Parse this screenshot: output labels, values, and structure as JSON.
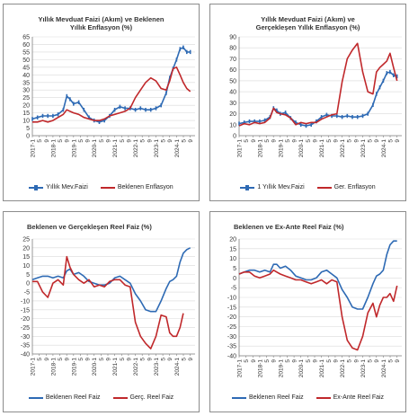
{
  "colors": {
    "blue": "#2e6ab4",
    "red": "#c0282b",
    "grid": "#d9d9d9",
    "axis": "#7f7f7f"
  },
  "x_categories": [
    "2017-1",
    "5",
    "9",
    "2018-1",
    "5",
    "9",
    "2019-1",
    "5",
    "9",
    "2020-1",
    "5",
    "9",
    "2021-1",
    "5",
    "9",
    "2022-1",
    "5",
    "9",
    "2023-1",
    "5",
    "9",
    "2024-1",
    "5",
    "9"
  ],
  "panels": {
    "p1": {
      "title_line1": "Yıllık Mevduat Faizi (Akım) ve Beklenen",
      "title_line2": "Yıllık Enflasyon (%)",
      "legend": [
        "Yıllık Mev.Faizi",
        "Beklenen Enflasyon"
      ]
    },
    "p2": {
      "title_line1": "Yıllık Mevduat Faizi (Akım) ve",
      "title_line2": "Gerçekleşen Yıllık Enflasyon (%)",
      "legend": [
        "1 Yıllık Mev.Faizi",
        "Ger. Enflasyon"
      ]
    },
    "p3": {
      "title_line1": "Beklenen ve Gerçekleşen Reel Faiz (%)",
      "legend": [
        "Beklenen Reel Faiz",
        "Gerç. Reel Faiz"
      ]
    },
    "p4": {
      "title_line1": "Beklenen ve Ex-Ante Reel Faiz (%)",
      "legend": [
        "Beklenen Reel Faiz",
        "Ex-Ante Reel Faiz"
      ]
    }
  },
  "chart_data": [
    {
      "type": "line",
      "title": "Yıllık Mevduat Faizi (Akım) ve Beklenen Yıllık Enflasyon (%)",
      "ylim": [
        0,
        65
      ],
      "ytick_step": 5,
      "grid": true,
      "legend_position": "bottom",
      "x": [
        2017.0,
        2017.25,
        2017.5,
        2017.75,
        2018.0,
        2018.25,
        2018.5,
        2018.67,
        2018.83,
        2019.0,
        2019.25,
        2019.5,
        2019.75,
        2020.0,
        2020.25,
        2020.5,
        2020.75,
        2021.0,
        2021.25,
        2021.5,
        2021.75,
        2022.0,
        2022.25,
        2022.5,
        2022.75,
        2023.0,
        2023.25,
        2023.5,
        2023.67,
        2023.83,
        2024.0,
        2024.17,
        2024.33,
        2024.5,
        2024.67
      ],
      "series": [
        {
          "name": "Yıllık Mev.Faizi",
          "values": [
            11,
            12,
            13,
            13,
            13,
            14,
            17,
            26,
            24,
            21,
            22,
            17,
            12,
            10,
            9,
            10,
            13,
            17,
            19,
            18,
            18,
            17,
            18,
            17,
            17,
            18,
            20,
            28,
            38,
            44,
            50,
            57,
            58,
            55,
            55
          ]
        },
        {
          "name": "Beklenen Enflasyon",
          "values": [
            9,
            9,
            10,
            9,
            10,
            12,
            14,
            17,
            16,
            15,
            14,
            12,
            11,
            10,
            10,
            11,
            13,
            14,
            15,
            16,
            18,
            25,
            30,
            35,
            38,
            36,
            31,
            30,
            36,
            44,
            45,
            40,
            35,
            31,
            29
          ]
        }
      ]
    },
    {
      "type": "line",
      "title": "Yıllık Mevduat Faizi (Akım) ve Gerçekleşen Yıllık Enflasyon (%)",
      "ylim": [
        0,
        90
      ],
      "ytick_step": 10,
      "grid": true,
      "legend_position": "bottom",
      "x": [
        2017.0,
        2017.25,
        2017.5,
        2017.75,
        2018.0,
        2018.25,
        2018.5,
        2018.67,
        2018.83,
        2019.0,
        2019.25,
        2019.5,
        2019.75,
        2020.0,
        2020.25,
        2020.5,
        2020.75,
        2021.0,
        2021.25,
        2021.5,
        2021.75,
        2022.0,
        2022.25,
        2022.5,
        2022.75,
        2023.0,
        2023.25,
        2023.5,
        2023.67,
        2023.83,
        2024.0,
        2024.17,
        2024.33,
        2024.5,
        2024.67
      ],
      "series": [
        {
          "name": "1 Yıllık Mev.Faizi",
          "values": [
            11,
            12,
            13,
            13,
            13,
            14,
            17,
            25,
            23,
            20,
            21,
            16,
            12,
            10,
            9,
            10,
            13,
            17,
            19,
            18,
            18,
            17,
            18,
            17,
            17,
            18,
            20,
            28,
            38,
            44,
            50,
            57,
            58,
            55,
            54
          ]
        },
        {
          "name": "Ger. Enflasyon",
          "values": [
            9,
            11,
            10,
            12,
            11,
            12,
            16,
            25,
            21,
            20,
            19,
            16,
            10,
            12,
            11,
            12,
            12,
            15,
            17,
            19,
            20,
            49,
            70,
            78,
            84,
            58,
            40,
            38,
            58,
            62,
            65,
            68,
            75,
            62,
            50
          ]
        }
      ]
    },
    {
      "type": "line",
      "title": "Beklenen ve Gerçekleşen Reel Faiz (%)",
      "ylim": [
        -40,
        25
      ],
      "ytick_step": 5,
      "grid": true,
      "legend_position": "bottom",
      "x": [
        2017.0,
        2017.25,
        2017.5,
        2017.75,
        2018.0,
        2018.25,
        2018.5,
        2018.67,
        2018.83,
        2019.0,
        2019.25,
        2019.5,
        2019.75,
        2020.0,
        2020.25,
        2020.5,
        2020.75,
        2021.0,
        2021.25,
        2021.5,
        2021.75,
        2022.0,
        2022.25,
        2022.5,
        2022.75,
        2023.0,
        2023.25,
        2023.5,
        2023.67,
        2023.83,
        2024.0,
        2024.17,
        2024.33,
        2024.5,
        2024.67
      ],
      "series": [
        {
          "name": "Beklenen Reel Faiz",
          "values": [
            2,
            3,
            4,
            4,
            3,
            4,
            3,
            7,
            8,
            5,
            6,
            4,
            1,
            0,
            -1,
            -1,
            0,
            3,
            4,
            2,
            0,
            -6,
            -10,
            -15,
            -16,
            -16,
            -10,
            -3,
            1,
            2,
            4,
            12,
            17,
            19,
            20
          ]
        },
        {
          "name": "Gerç. Reel Faiz",
          "values": [
            1,
            1,
            -5,
            -8,
            0,
            2,
            -1,
            15,
            9,
            5,
            2,
            0,
            2,
            -2,
            -1,
            -2,
            1,
            2,
            2,
            -1,
            -2,
            -22,
            -30,
            -34,
            -37,
            -30,
            -18,
            -19,
            -28,
            -30,
            -30,
            -25,
            -17,
            null,
            null
          ]
        }
      ]
    },
    {
      "type": "line",
      "title": "Beklenen ve Ex-Ante Reel Faiz (%)",
      "ylim": [
        -40,
        20
      ],
      "ytick_step": 5,
      "grid": true,
      "legend_position": "bottom",
      "x": [
        2017.0,
        2017.25,
        2017.5,
        2017.75,
        2018.0,
        2018.25,
        2018.5,
        2018.67,
        2018.83,
        2019.0,
        2019.25,
        2019.5,
        2019.75,
        2020.0,
        2020.25,
        2020.5,
        2020.75,
        2021.0,
        2021.25,
        2021.5,
        2021.75,
        2022.0,
        2022.25,
        2022.5,
        2022.75,
        2023.0,
        2023.25,
        2023.5,
        2023.67,
        2023.83,
        2024.0,
        2024.17,
        2024.33,
        2024.5,
        2024.67
      ],
      "series": [
        {
          "name": "Beklenen Reel Faiz",
          "values": [
            2,
            3,
            4,
            4,
            3,
            4,
            3,
            7,
            7,
            5,
            6,
            4,
            1,
            0,
            -1,
            -1,
            0,
            3,
            4,
            2,
            0,
            -6,
            -10,
            -15,
            -16,
            -16,
            -10,
            -3,
            1,
            2,
            4,
            12,
            17,
            19,
            19
          ]
        },
        {
          "name": "Ex-Ante Reel Faiz",
          "values": [
            2,
            3,
            3,
            1,
            0,
            1,
            2,
            4,
            3,
            2,
            1,
            0,
            -1,
            -1,
            -2,
            -3,
            -2,
            -1,
            -3,
            -1,
            -2,
            -20,
            -32,
            -36,
            -37,
            -30,
            -18,
            -13,
            -20,
            -14,
            -10,
            -10,
            -8,
            -12,
            -4
          ]
        }
      ]
    }
  ]
}
